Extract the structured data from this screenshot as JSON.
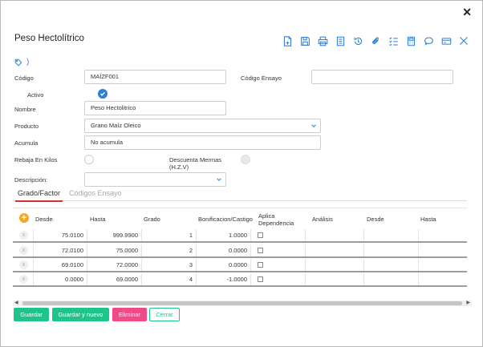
{
  "dialog": {
    "title": "Peso Hectolítrico",
    "close_glyph": "✕"
  },
  "toolbar": {
    "icons": [
      "new-document-icon",
      "save-icon",
      "print-icon",
      "notes-icon",
      "history-icon",
      "attach-icon",
      "checklist-icon",
      "calculator-icon",
      "comment-icon",
      "card-icon",
      "close-icon"
    ]
  },
  "tag": {
    "glyph": ")"
  },
  "form": {
    "codigo": {
      "label": "Código",
      "value": "MAÍZF001"
    },
    "codigo_ensayo": {
      "label": "Código Ensayo",
      "value": ""
    },
    "activo": {
      "label": "Activo",
      "checked": true
    },
    "nombre": {
      "label": "Nombre",
      "value": "Peso Hectolitrico"
    },
    "producto": {
      "label": "Producto",
      "value": "Grano Maíz Oleico"
    },
    "acumula": {
      "label": "Acumula",
      "value": "No acumula"
    },
    "rebaja_kilos": {
      "label": "Rebaja En Kilos",
      "checked": false
    },
    "descuenta_mermas": {
      "label_line1": "Descuenta Mermas",
      "label_line2": "(H.Z.V)",
      "checked": false
    },
    "descripcion": {
      "label": "Descripción:",
      "value": ""
    }
  },
  "tabs": [
    {
      "label": "Grado/Factor",
      "active": true
    },
    {
      "label": "Códigos Ensayo",
      "active": false
    }
  ],
  "grid": {
    "columns": {
      "desde": "Desde",
      "hasta": "Hasta",
      "grado": "Grado",
      "bonificacion": "Bonificacion/Castigo",
      "aplica_line1": "Aplica",
      "aplica_line2": "Dependencia",
      "analisis": "Análisis",
      "desde2": "Desde",
      "hasta2": "Hasta"
    },
    "remove_glyph": "x",
    "add_glyph": "+",
    "rows": [
      {
        "desde": "75.0100",
        "hasta": "999.9900",
        "grado": "1",
        "bonificacion": "1.0000",
        "aplica": false
      },
      {
        "desde": "72.0100",
        "hasta": "75.0000",
        "grado": "2",
        "bonificacion": "0.0000",
        "aplica": false
      },
      {
        "desde": "69.0100",
        "hasta": "72.0000",
        "grado": "3",
        "bonificacion": "0.0000",
        "aplica": false
      },
      {
        "desde": "0.0000",
        "hasta": "69.0000",
        "grado": "4",
        "bonificacion": "-1.0000",
        "aplica": false
      }
    ]
  },
  "scrollbar": {
    "left_arrow": "◀",
    "right_arrow": "▶"
  },
  "buttons": {
    "guardar": "Guardar",
    "guardar_nuevo": "Guardar y nuevo",
    "eliminar": "Eliminar",
    "cerrar": "Cerrar"
  },
  "colors": {
    "accent_blue": "#2f7fd6",
    "green": "#1fc48a",
    "pink": "#ef4b86",
    "tab_underline": "#d32f2f",
    "add_orange": "#f5a623"
  }
}
